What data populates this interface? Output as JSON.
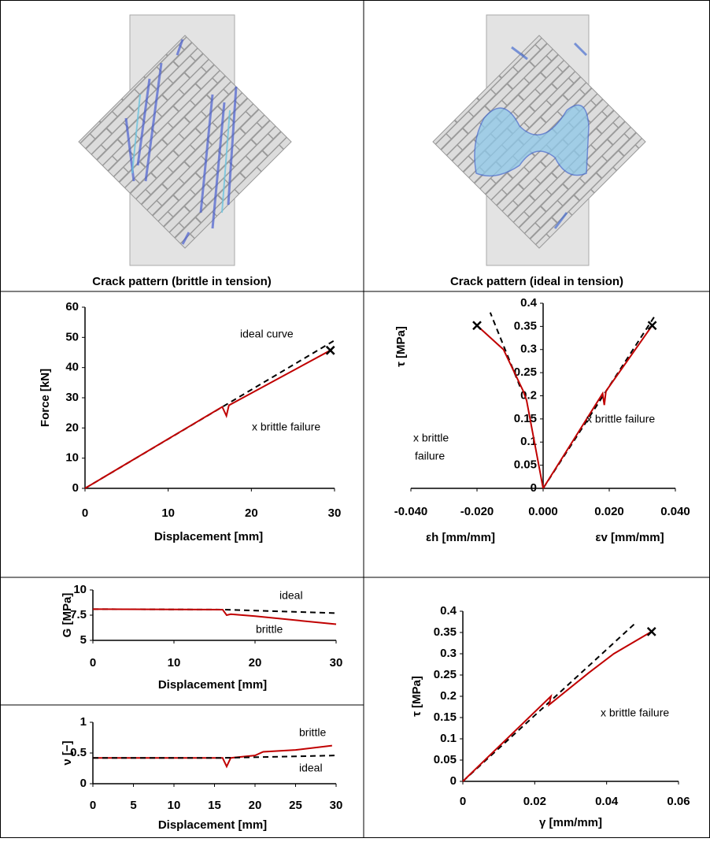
{
  "captions": [
    "Crack pattern (brittle in tension)",
    "Crack pattern (ideal in tension)"
  ],
  "chart_data": [
    {
      "type": "line",
      "xlabel": [
        "Displacement [mm]"
      ],
      "ylabel": "Force [kN]",
      "xlim": [
        0,
        30
      ],
      "xticks": [
        0,
        10,
        20,
        30
      ],
      "ylim": [
        0,
        60
      ],
      "yticks": [
        0,
        10,
        20,
        30,
        40,
        50,
        60
      ],
      "series": [
        {
          "color": "#000000",
          "dash": true,
          "x": [
            0,
            30
          ],
          "values": [
            0,
            49
          ]
        },
        {
          "color": "#c00000",
          "dash": false,
          "x": [
            0,
            16.5,
            17,
            17.3,
            29.5
          ],
          "values": [
            0,
            27,
            24,
            27.5,
            45.7
          ]
        }
      ],
      "failure": {
        "x": 29.5,
        "y": 45.7
      },
      "annotations": [
        "ideal curve",
        "x brittle failure"
      ]
    },
    {
      "type": "line",
      "xlabel": [
        "εh [mm/mm]",
        "εv [mm/mm]"
      ],
      "ylabel": "τ [MPa]",
      "xlim": [
        -0.04,
        0.04
      ],
      "xticks": [
        {
          "value": -0.04,
          "label": "-0.040"
        },
        {
          "value": -0.02,
          "label": "-0.020"
        },
        {
          "value": 0,
          "label": "0.000"
        },
        {
          "value": 0.02,
          "label": "0.020"
        },
        {
          "value": 0.04,
          "label": "0.040"
        }
      ],
      "ylim": [
        0,
        0.4
      ],
      "yticks": [
        0,
        0.05,
        0.1,
        0.15,
        0.2,
        0.25,
        0.3,
        0.35,
        0.4
      ],
      "series": [
        {
          "color": "#000000",
          "dash": true,
          "x": [
            0,
            0.034
          ],
          "values": [
            0,
            0.375
          ]
        },
        {
          "color": "#000000",
          "dash": true,
          "x": [
            -0.007,
            -0.016
          ],
          "values": [
            0.22,
            0.38
          ]
        },
        {
          "color": "#c00000",
          "dash": false,
          "x": [
            0,
            0.018,
            0.0185,
            0.019,
            0.033
          ],
          "values": [
            0,
            0.205,
            0.18,
            0.21,
            0.352
          ]
        },
        {
          "color": "#c00000",
          "dash": false,
          "x": [
            0,
            -0.005,
            -0.006,
            -0.012,
            -0.02
          ],
          "values": [
            0,
            0.19,
            0.21,
            0.3,
            0.352
          ]
        }
      ],
      "failure": [
        {
          "x": 0.033,
          "y": 0.352
        },
        {
          "x": -0.02,
          "y": 0.352
        }
      ],
      "annotations": [
        "x brittle failure",
        "x brittle",
        "failure"
      ]
    },
    {
      "type": "line",
      "xlabel": [
        "Displacement [mm]"
      ],
      "ylabel": "G [MPa]",
      "xlim": [
        0,
        30
      ],
      "xticks": [
        0,
        10,
        20,
        30
      ],
      "ylim": [
        5,
        10
      ],
      "yticks": [
        5,
        7.5,
        10
      ],
      "series": [
        {
          "name": "ideal",
          "color": "#000000",
          "dash": true,
          "x": [
            0,
            16,
            30
          ],
          "values": [
            8.1,
            8.05,
            7.7
          ]
        },
        {
          "name": "brittle",
          "color": "#c00000",
          "dash": false,
          "x": [
            0,
            16,
            16.5,
            17,
            20,
            30
          ],
          "values": [
            8.1,
            8.05,
            7.5,
            7.6,
            7.4,
            6.6
          ]
        }
      ]
    },
    {
      "type": "line",
      "xlabel": [
        "Displacement [mm]"
      ],
      "ylabel": "ν [−]",
      "xlim": [
        0,
        30
      ],
      "xticks": [
        0,
        5,
        10,
        15,
        20,
        25,
        30
      ],
      "ylim": [
        0,
        1
      ],
      "yticks": [
        0,
        0.5,
        1
      ],
      "series": [
        {
          "name": "brittle",
          "color": "#c00000",
          "dash": false,
          "x": [
            0,
            16,
            16.5,
            17,
            20,
            21,
            25,
            29.5
          ],
          "values": [
            0.42,
            0.42,
            0.28,
            0.42,
            0.46,
            0.52,
            0.55,
            0.62
          ]
        },
        {
          "name": "ideal",
          "color": "#000000",
          "dash": true,
          "x": [
            0,
            16,
            30
          ],
          "values": [
            0.42,
            0.42,
            0.46
          ]
        }
      ]
    },
    {
      "type": "line",
      "xlabel": [
        "γ [mm/mm]"
      ],
      "ylabel": "τ [MPa]",
      "xlim": [
        0,
        0.06
      ],
      "xticks": [
        0,
        0.02,
        0.04,
        0.06
      ],
      "ylim": [
        0,
        0.4
      ],
      "yticks": [
        0,
        0.05,
        0.1,
        0.15,
        0.2,
        0.25,
        0.3,
        0.35,
        0.4
      ],
      "series": [
        {
          "color": "#000000",
          "dash": true,
          "x": [
            0,
            0.048
          ],
          "values": [
            0,
            0.372
          ]
        },
        {
          "color": "#c00000",
          "dash": false,
          "x": [
            0,
            0.0245,
            0.024,
            0.035,
            0.042,
            0.0525
          ],
          "values": [
            0,
            0.2,
            0.18,
            0.255,
            0.3,
            0.352
          ]
        }
      ],
      "failure": {
        "x": 0.0525,
        "y": 0.352
      },
      "annotations": [
        "x brittle failure"
      ]
    }
  ]
}
